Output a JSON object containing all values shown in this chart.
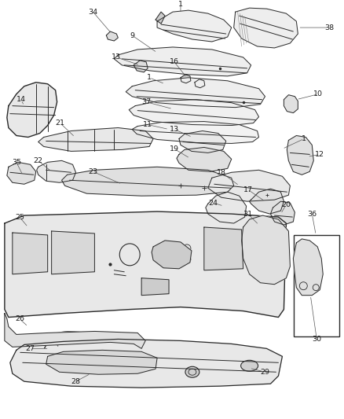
{
  "bg_color": "#ffffff",
  "line_color": "#2a2a2a",
  "line_color_light": "#555555",
  "fill_color": "#f5f5f5",
  "fill_dark": "#e0e0e0",
  "text_color": "#1a1a1a",
  "fig_width": 4.38,
  "fig_height": 5.33,
  "dpi": 100
}
